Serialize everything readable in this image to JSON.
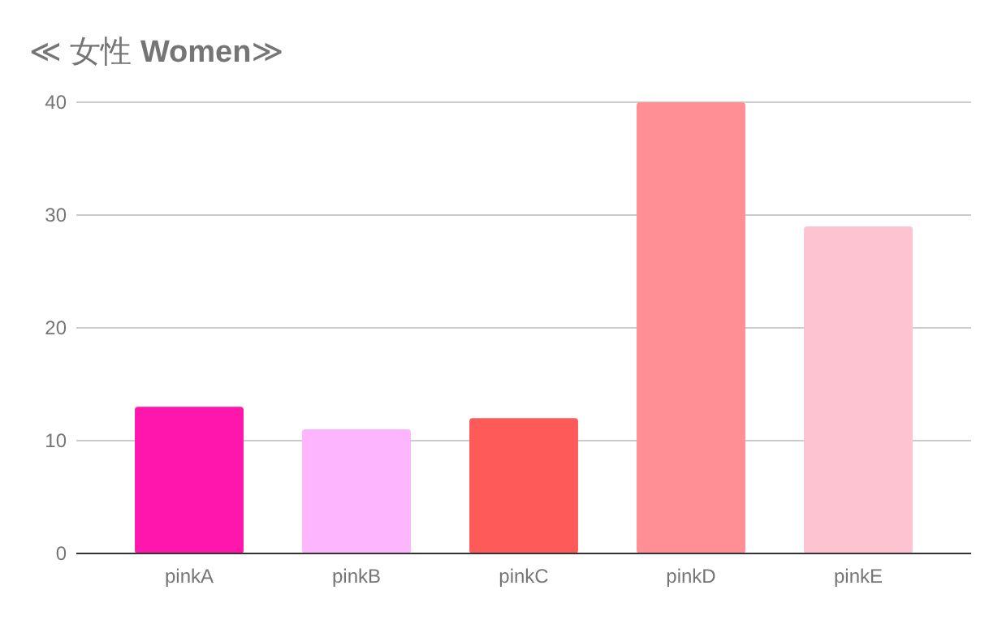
{
  "chart_data": {
    "type": "bar",
    "title": "≪ 女性 **Women**≫",
    "categories": [
      "pinkA",
      "pinkB",
      "pinkC",
      "pinkD",
      "pinkE"
    ],
    "values": [
      13,
      11,
      12,
      40,
      29
    ],
    "colors": [
      "#ff16ac",
      "#fdb5fd",
      "#ff5a5a",
      "#ff8f95",
      "#fdc3d1"
    ],
    "ylim": [
      0,
      40
    ],
    "yticks": [
      0,
      10,
      20,
      30,
      40
    ],
    "grid": "y"
  }
}
